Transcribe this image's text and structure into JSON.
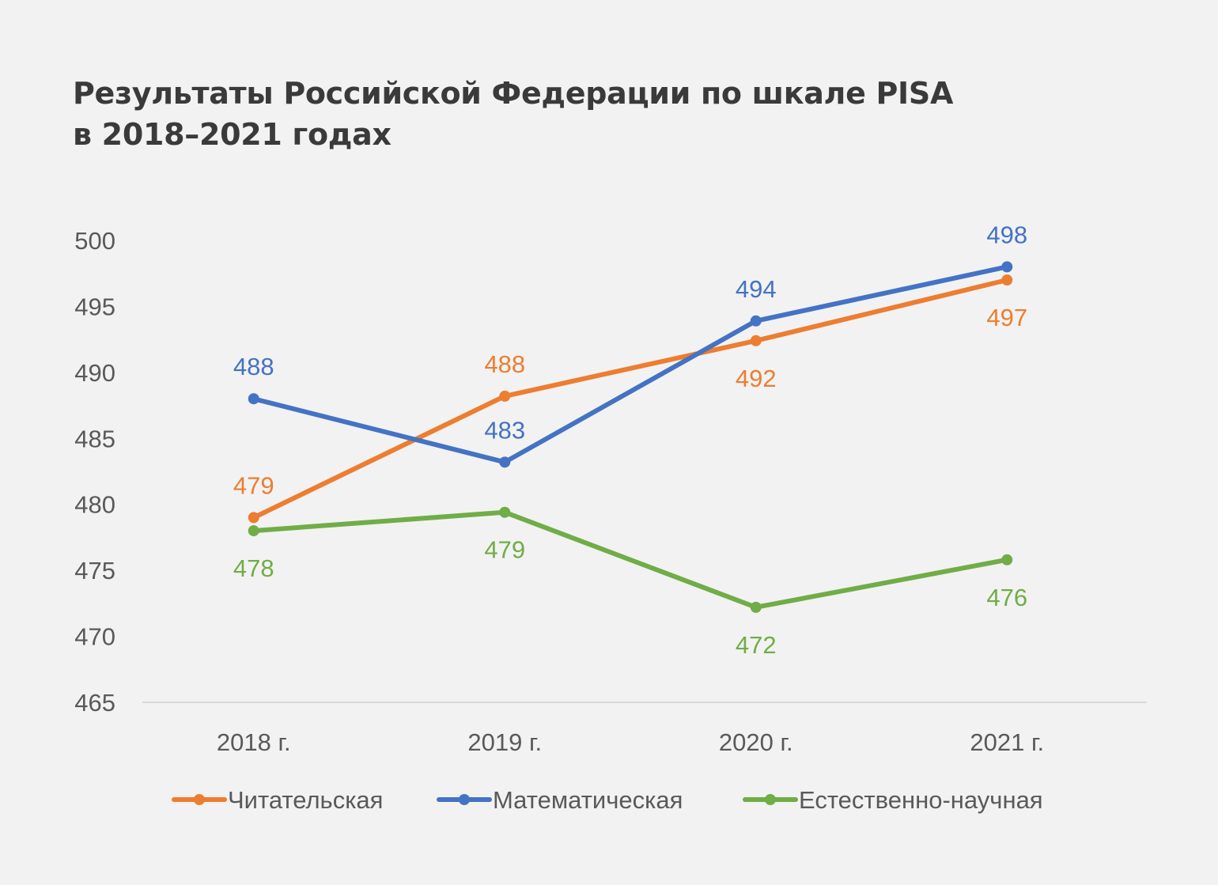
{
  "title": {
    "line1": "Результаты Российской Федерации по шкале PISA",
    "line2": "в 2018–2021 годах"
  },
  "chart_data": {
    "type": "line",
    "categories": [
      "2018 г.",
      "2019 г.",
      "2020 г.",
      "2021 г."
    ],
    "ylim": [
      465,
      500
    ],
    "yticks": [
      465,
      470,
      475,
      480,
      485,
      490,
      495,
      500
    ],
    "grid": false,
    "legend_position": "bottom",
    "series": [
      {
        "name": "Читательская",
        "color": "#ed7d31",
        "values": [
          479,
          488.2,
          492.4,
          497
        ],
        "labels": [
          "479",
          "488",
          "492",
          "497"
        ],
        "label_pos": [
          "above",
          "above",
          "below",
          "below"
        ]
      },
      {
        "name": "Математическая",
        "color": "#4472c4",
        "values": [
          488,
          483.2,
          493.9,
          498
        ],
        "labels": [
          "488",
          "483",
          "494",
          "498"
        ],
        "label_pos": [
          "above",
          "above",
          "above",
          "above"
        ]
      },
      {
        "name": "Естественно-научная",
        "color": "#70ad47",
        "values": [
          478,
          479.4,
          472.2,
          475.8
        ],
        "labels": [
          "478",
          "479",
          "472",
          "476"
        ],
        "label_pos": [
          "below",
          "below",
          "below",
          "below"
        ]
      }
    ]
  }
}
